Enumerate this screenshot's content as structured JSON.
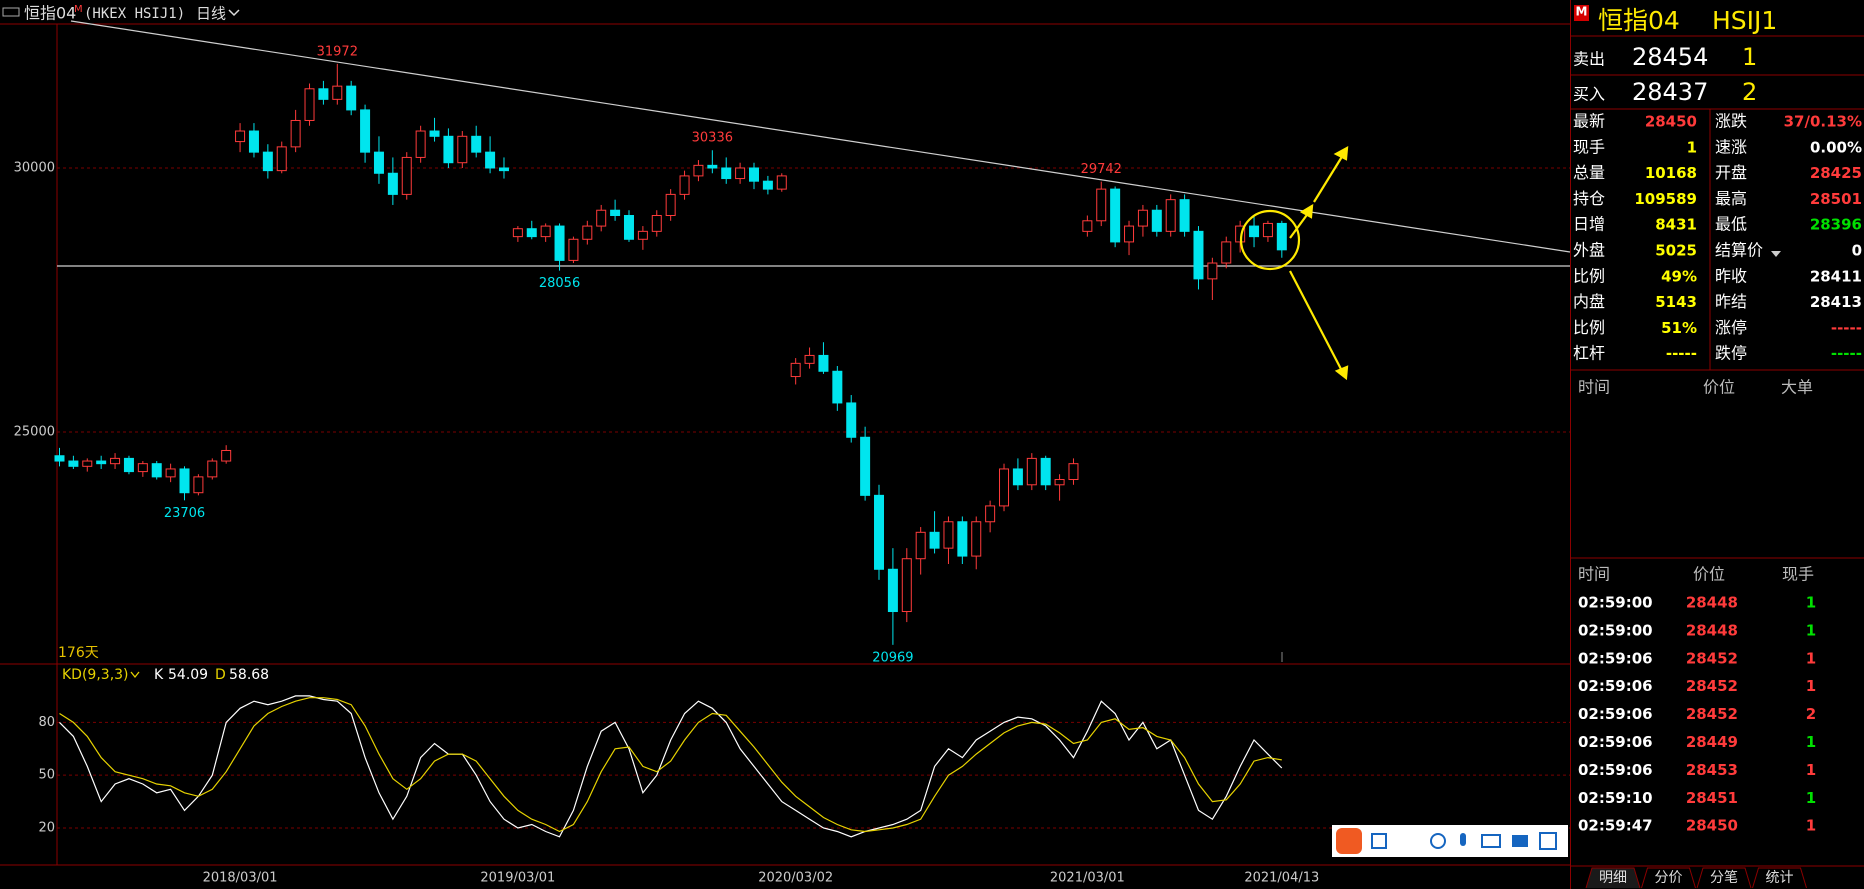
{
  "toolbar": {
    "symbol": "恒指04",
    "marker": "M",
    "code": "(HKEX HSIJ1)",
    "period": "日线"
  },
  "chart_data": {
    "type": "candlestick",
    "up_color": "#ff3b3b",
    "down_color": "#00e5ee",
    "ylim": [
      20606,
      32727
    ],
    "yticks": [
      25000,
      30000
    ],
    "period_label": "176天",
    "categories": [
      null,
      null,
      null,
      null,
      null,
      null,
      null,
      null,
      null,
      null,
      null,
      null,
      null,
      "2018/03/01",
      null,
      null,
      null,
      null,
      null,
      null,
      null,
      null,
      null,
      null,
      null,
      null,
      null,
      null,
      null,
      null,
      null,
      null,
      null,
      "2019/03/01",
      null,
      null,
      null,
      null,
      null,
      null,
      null,
      null,
      null,
      null,
      null,
      null,
      null,
      null,
      null,
      null,
      null,
      null,
      null,
      "2020/03/02",
      null,
      null,
      null,
      null,
      null,
      null,
      null,
      null,
      null,
      null,
      null,
      null,
      null,
      null,
      null,
      null,
      null,
      null,
      null,
      null,
      "2021/03/01",
      null,
      null,
      null,
      null,
      null,
      null,
      null,
      null,
      null,
      null,
      null,
      null,
      null,
      "2021/04/13"
    ],
    "open": [
      24550,
      24450,
      24350,
      24450,
      24400,
      24500,
      24250,
      24400,
      24150,
      24300,
      23850,
      24150,
      24450,
      30500,
      30700,
      30300,
      29950,
      30400,
      30900,
      31500,
      31300,
      31550,
      31100,
      30300,
      29900,
      29500,
      30200,
      30700,
      30600,
      30100,
      30600,
      30300,
      30000,
      28700,
      28850,
      28700,
      28900,
      28250,
      28650,
      28900,
      29200,
      29100,
      28650,
      28800,
      29100,
      29500,
      29850,
      30050,
      30000,
      29800,
      30000,
      29750,
      29600,
      26050,
      26300,
      26450,
      26150,
      25550,
      24900,
      23800,
      22400,
      21600,
      22600,
      23100,
      22800,
      23300,
      22650,
      23300,
      23600,
      24300,
      24000,
      24500,
      24000,
      24100,
      28800,
      29000,
      29600,
      28600,
      28900,
      29200,
      28800,
      29400,
      28800,
      27900,
      28200,
      28600,
      28900,
      28700,
      28950
    ],
    "high": [
      24700,
      24550,
      24500,
      24550,
      24600,
      24550,
      24450,
      24450,
      24400,
      24350,
      24200,
      24500,
      24750,
      30850,
      30850,
      30450,
      30500,
      31100,
      31600,
      31650,
      31972,
      31650,
      31200,
      30600,
      30200,
      30300,
      30800,
      30950,
      30750,
      30700,
      30800,
      30600,
      30200,
      28900,
      29000,
      28950,
      28950,
      28700,
      29000,
      29300,
      29400,
      29200,
      28900,
      29200,
      29600,
      29950,
      30150,
      30336,
      30200,
      30100,
      30100,
      29850,
      29900,
      26400,
      26600,
      26700,
      26250,
      25700,
      25100,
      24000,
      22800,
      22800,
      23200,
      23500,
      23400,
      23400,
      23400,
      23700,
      24400,
      24500,
      24600,
      24550,
      24200,
      24500,
      29100,
      29742,
      29650,
      29000,
      29300,
      29300,
      29500,
      29500,
      28900,
      28300,
      28700,
      29000,
      29100,
      29000,
      29000
    ],
    "low": [
      24350,
      24300,
      24250,
      24300,
      24300,
      24200,
      24150,
      24100,
      24050,
      23706,
      23800,
      24100,
      24400,
      30300,
      30200,
      29800,
      29900,
      30300,
      30800,
      31200,
      31200,
      31000,
      30100,
      29700,
      29300,
      29400,
      30100,
      30500,
      30000,
      30000,
      30200,
      29900,
      29800,
      28600,
      28650,
      28600,
      28056,
      28200,
      28550,
      28800,
      29000,
      28600,
      28450,
      28700,
      29000,
      29400,
      29750,
      29900,
      29700,
      29700,
      29600,
      29500,
      29550,
      25900,
      26200,
      26100,
      25400,
      24800,
      23700,
      22200,
      20969,
      21400,
      22300,
      22700,
      22500,
      22500,
      22400,
      23100,
      23500,
      23900,
      23900,
      23900,
      23700,
      24000,
      28700,
      28900,
      28500,
      28350,
      28700,
      28700,
      28700,
      28700,
      27700,
      27500,
      28100,
      28400,
      28500,
      28600,
      28300
    ],
    "close": [
      24450,
      24350,
      24450,
      24400,
      24500,
      24250,
      24400,
      24150,
      24300,
      23850,
      24150,
      24450,
      24650,
      30700,
      30300,
      29950,
      30400,
      30900,
      31500,
      31300,
      31550,
      31100,
      30300,
      29900,
      29500,
      30200,
      30700,
      30600,
      30100,
      30600,
      30300,
      30000,
      29950,
      28850,
      28700,
      28900,
      28250,
      28650,
      28900,
      29200,
      29100,
      28650,
      28800,
      29100,
      29500,
      29850,
      30050,
      30000,
      29800,
      30000,
      29750,
      29600,
      29850,
      26300,
      26450,
      26150,
      25550,
      24900,
      23800,
      22400,
      21600,
      22600,
      23100,
      22800,
      23300,
      22650,
      23300,
      23600,
      24300,
      24000,
      24500,
      24000,
      24100,
      24400,
      29000,
      29600,
      28600,
      28900,
      29200,
      28800,
      29400,
      28800,
      27900,
      28200,
      28600,
      28900,
      28700,
      28950,
      28450
    ],
    "annotations": [
      31972,
      30336,
      29742,
      28056,
      23706,
      20969
    ],
    "indicator": {
      "label": "KD(9,3,3)",
      "ylim": [
        -1,
        112
      ],
      "yticks": [
        20,
        50,
        80
      ],
      "series": [
        {
          "name": "K",
          "color": "#ffffff",
          "values": [
            80,
            72,
            55,
            35,
            45,
            48,
            45,
            40,
            42,
            30,
            38,
            50,
            80,
            88,
            92,
            90,
            92,
            95,
            95,
            93,
            92,
            85,
            60,
            40,
            25,
            38,
            60,
            68,
            62,
            62,
            50,
            35,
            25,
            20,
            22,
            18,
            15,
            30,
            55,
            75,
            80,
            65,
            40,
            50,
            70,
            85,
            92,
            88,
            80,
            65,
            55,
            45,
            35,
            30,
            25,
            20,
            18,
            15,
            18,
            20,
            22,
            25,
            30,
            55,
            65,
            60,
            70,
            75,
            80,
            83,
            82,
            78,
            70,
            60,
            75,
            92,
            85,
            70,
            80,
            65,
            70,
            50,
            30,
            25,
            38,
            55,
            70,
            62,
            54.09
          ]
        },
        {
          "name": "D",
          "color": "#e6d200",
          "values": [
            85,
            80,
            72,
            60,
            52,
            50,
            48,
            45,
            44,
            40,
            38,
            42,
            52,
            65,
            78,
            85,
            89,
            92,
            94,
            94,
            93,
            90,
            78,
            62,
            48,
            42,
            48,
            58,
            62,
            62,
            58,
            48,
            38,
            30,
            25,
            22,
            18,
            22,
            35,
            52,
            65,
            66,
            55,
            52,
            58,
            70,
            80,
            85,
            84,
            75,
            66,
            56,
            46,
            38,
            32,
            26,
            22,
            19,
            18,
            19,
            20,
            22,
            25,
            38,
            50,
            55,
            62,
            68,
            74,
            78,
            80,
            79,
            74,
            68,
            70,
            80,
            82,
            76,
            77,
            72,
            70,
            60,
            45,
            35,
            36,
            45,
            58,
            60,
            58.68
          ]
        }
      ]
    }
  },
  "quote": {
    "marker": "M",
    "symbol": "恒指04",
    "code": "HSIJ1",
    "ask": {
      "label": "卖出",
      "price": "28454",
      "size": "1"
    },
    "bid": {
      "label": "买入",
      "price": "28437",
      "size": "2"
    },
    "rows": [
      [
        {
          "label": "最新",
          "value": "28450",
          "color": "#ff3b3b"
        },
        {
          "label": "涨跌",
          "value": "37/0.13%",
          "color": "#ff3b3b"
        }
      ],
      [
        {
          "label": "现手",
          "value": "1",
          "color": "#ffff00"
        },
        {
          "label": "速涨",
          "value": "0.00%",
          "color": "#ffffff"
        }
      ],
      [
        {
          "label": "总量",
          "value": "10168",
          "color": "#ffff00"
        },
        {
          "label": "开盘",
          "value": "28425",
          "color": "#ff3b3b"
        }
      ],
      [
        {
          "label": "持仓",
          "value": "109589",
          "color": "#ffff00"
        },
        {
          "label": "最高",
          "value": "28501",
          "color": "#ff3b3b"
        }
      ],
      [
        {
          "label": "日增",
          "value": "8431",
          "color": "#ffff00"
        },
        {
          "label": "最低",
          "value": "28396",
          "color": "#00e000"
        }
      ],
      [
        {
          "label": "外盘",
          "value": "5025",
          "color": "#ffff00"
        },
        {
          "label": "结算价",
          "value": "0",
          "color": "#ffffff"
        }
      ],
      [
        {
          "label": "比例",
          "value": "49%",
          "color": "#ffff00"
        },
        {
          "label": "昨收",
          "value": "28411",
          "color": "#ffffff"
        }
      ],
      [
        {
          "label": "内盘",
          "value": "5143",
          "color": "#ffff00"
        },
        {
          "label": "昨结",
          "value": "28413",
          "color": "#ffffff"
        }
      ],
      [
        {
          "label": "比例",
          "value": "51%",
          "color": "#ffff00"
        },
        {
          "label": "涨停",
          "value": "-----",
          "color": "#ff3b3b"
        }
      ],
      [
        {
          "label": "杠杆",
          "value": "-----",
          "color": "#ffff00"
        },
        {
          "label": "跌停",
          "value": "-----",
          "color": "#00e000"
        }
      ]
    ],
    "list_header": [
      "时间",
      "价位",
      "大单"
    ]
  },
  "trades": {
    "header": [
      "时间",
      "价位",
      "现手"
    ],
    "rows": [
      {
        "time": "02:59:00",
        "price": "28448",
        "size": "1",
        "color": "#00e000"
      },
      {
        "time": "02:59:00",
        "price": "28448",
        "size": "1",
        "color": "#00e000"
      },
      {
        "time": "02:59:06",
        "price": "28452",
        "size": "1",
        "color": "#ff3b3b"
      },
      {
        "time": "02:59:06",
        "price": "28452",
        "size": "1",
        "color": "#ff3b3b"
      },
      {
        "time": "02:59:06",
        "price": "28452",
        "size": "2",
        "color": "#ff3b3b"
      },
      {
        "time": "02:59:06",
        "price": "28449",
        "size": "1",
        "color": "#00e000"
      },
      {
        "time": "02:59:06",
        "price": "28453",
        "size": "1",
        "color": "#ff3b3b"
      },
      {
        "time": "02:59:10",
        "price": "28451",
        "size": "1",
        "color": "#00e000"
      },
      {
        "time": "02:59:47",
        "price": "28450",
        "size": "1",
        "color": "#ff3b3b"
      }
    ]
  },
  "tabs": [
    "明细",
    "分价",
    "分笔",
    "统计"
  ]
}
